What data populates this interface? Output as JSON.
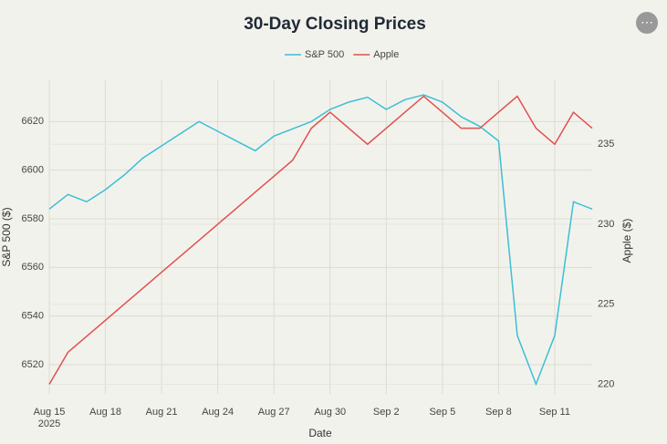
{
  "chart_data": {
    "type": "line",
    "title": "30-Day Closing Prices",
    "x": [
      "2025-08-15",
      "2025-08-16",
      "2025-08-17",
      "2025-08-18",
      "2025-08-19",
      "2025-08-20",
      "2025-08-21",
      "2025-08-22",
      "2025-08-23",
      "2025-08-24",
      "2025-08-25",
      "2025-08-26",
      "2025-08-27",
      "2025-08-28",
      "2025-08-29",
      "2025-08-30",
      "2025-08-31",
      "2025-09-01",
      "2025-09-02",
      "2025-09-03",
      "2025-09-04",
      "2025-09-05",
      "2025-09-06",
      "2025-09-07",
      "2025-09-08",
      "2025-09-09",
      "2025-09-10",
      "2025-09-11",
      "2025-09-12",
      "2025-09-13"
    ],
    "series": [
      {
        "name": "S&P 500",
        "color": "#3bbfd6",
        "axis": "y",
        "values": [
          6584,
          6590,
          6587,
          6592,
          6598,
          6605,
          6610,
          6615,
          6620,
          6616,
          6612,
          6608,
          6614,
          6617,
          6620,
          6625,
          6628,
          6630,
          6625,
          6629,
          6631,
          6628,
          6622,
          6618,
          6612,
          6532,
          6512,
          6532,
          6587,
          6584
        ]
      },
      {
        "name": "Apple",
        "color": "#e05050",
        "axis": "y2",
        "values": [
          220,
          222,
          223,
          224,
          225,
          226,
          227,
          228,
          229,
          230,
          231,
          232,
          233,
          234,
          236,
          237,
          236,
          235,
          236,
          237,
          238,
          237,
          236,
          236,
          237,
          238,
          236,
          235,
          237,
          236
        ]
      }
    ],
    "xlabel": "Date",
    "ylabel": "S&P 500 ($)",
    "y2label": "Apple ($)",
    "xlim": [
      "2025-08-15",
      "2025-09-13"
    ],
    "xticks": [
      {
        "value": "2025-08-15",
        "label": "Aug 15\n2025"
      },
      {
        "value": "2025-08-18",
        "label": "Aug 18"
      },
      {
        "value": "2025-08-21",
        "label": "Aug 21"
      },
      {
        "value": "2025-08-24",
        "label": "Aug 24"
      },
      {
        "value": "2025-08-27",
        "label": "Aug 27"
      },
      {
        "value": "2025-08-30",
        "label": "Aug 30"
      },
      {
        "value": "2025-09-02",
        "label": "Sep 2"
      },
      {
        "value": "2025-09-05",
        "label": "Sep 5"
      },
      {
        "value": "2025-09-08",
        "label": "Sep 8"
      },
      {
        "value": "2025-09-11",
        "label": "Sep 11"
      }
    ],
    "ylim": [
      6508,
      6637
    ],
    "yticks": [
      6520,
      6540,
      6560,
      6580,
      6600,
      6620
    ],
    "y2lim": [
      219.4,
      239
    ],
    "y2ticks": [
      220,
      225,
      230,
      235
    ],
    "grid": true,
    "legend": "top"
  }
}
